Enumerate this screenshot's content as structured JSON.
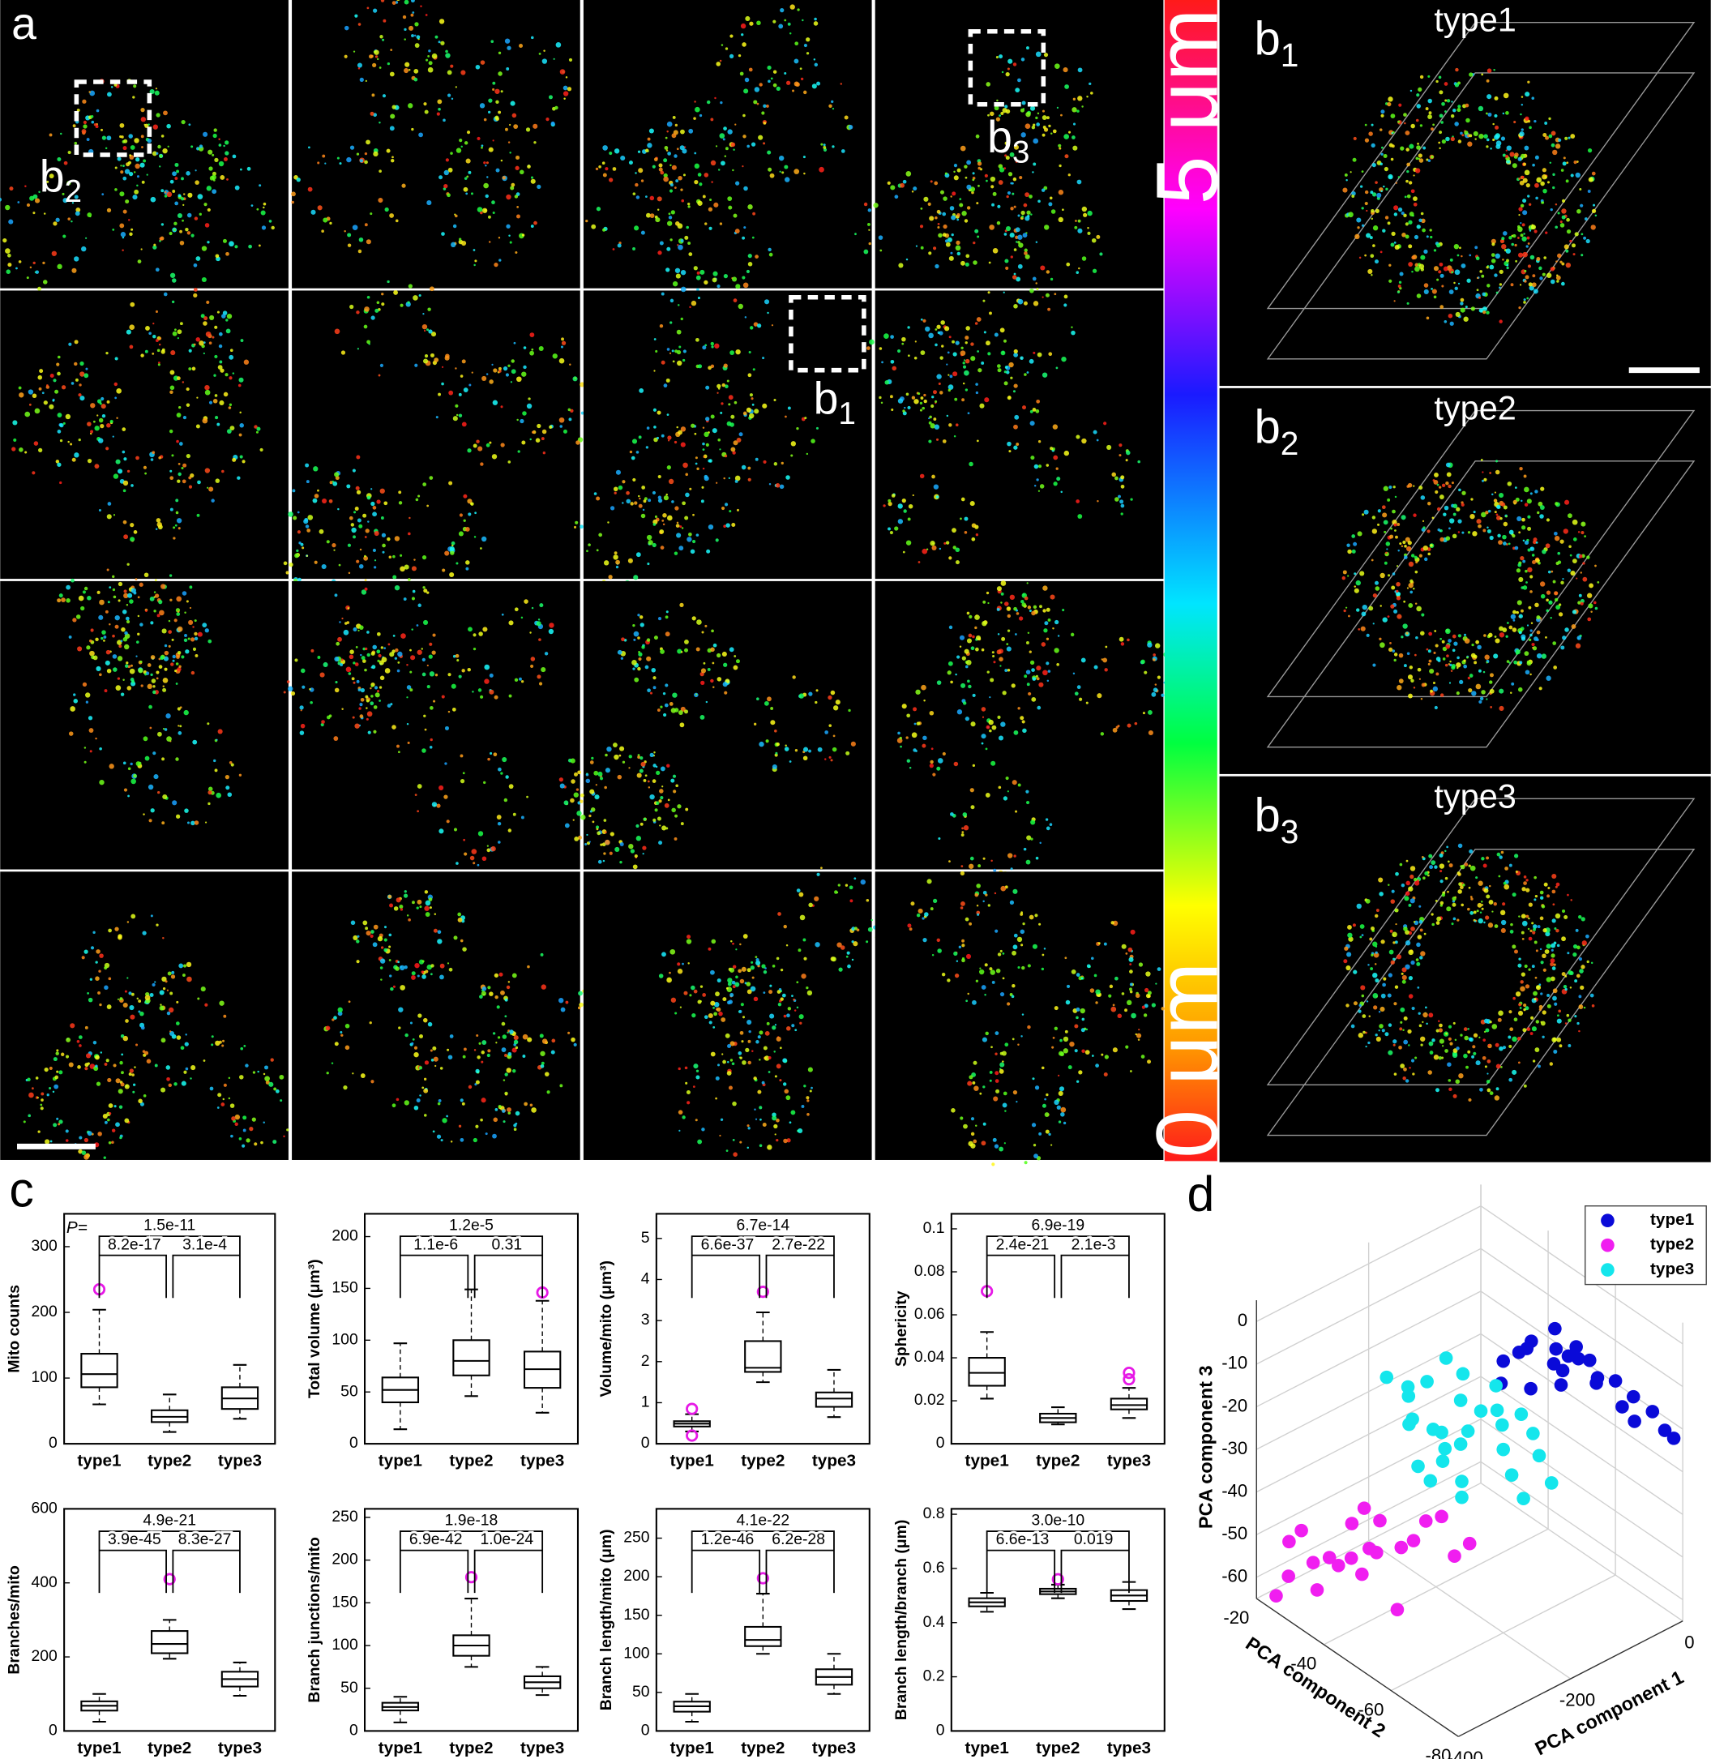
{
  "panel_labels": {
    "a": "a",
    "c": "c",
    "d": "d"
  },
  "panel_a": {
    "insets": [
      {
        "main": "b",
        "sub": "2"
      },
      {
        "main": "b",
        "sub": "3"
      },
      {
        "main": "b",
        "sub": "1"
      }
    ]
  },
  "colorbar": {
    "top_label": "5 μm",
    "bottom_label": "0 μm"
  },
  "panel_b": [
    {
      "main": "b",
      "sub": "1",
      "title": "type1"
    },
    {
      "main": "b",
      "sub": "2",
      "title": "type2"
    },
    {
      "main": "b",
      "sub": "3",
      "title": "type3"
    }
  ],
  "chart_data": [
    {
      "type": "box",
      "ylabel": "Mito counts",
      "categories": [
        "type1",
        "type2",
        "type3"
      ],
      "color": "#000000",
      "outlier_color": "#e619e6",
      "ylim": [
        0,
        350
      ],
      "yticks": [
        0,
        100,
        200,
        300
      ],
      "p_prefix": "P=",
      "pvalues": {
        "overall": "1.5e-11",
        "left": "8.2e-17",
        "right": "3.1e-4"
      },
      "boxes": [
        {
          "min": 60,
          "q1": 86,
          "median": 106,
          "q3": 137,
          "max": 204,
          "outliers": [
            235
          ]
        },
        {
          "min": 18,
          "q1": 33,
          "median": 41,
          "q3": 51,
          "max": 75,
          "outliers": []
        },
        {
          "min": 38,
          "q1": 53,
          "median": 69,
          "q3": 86,
          "max": 120,
          "outliers": []
        }
      ]
    },
    {
      "type": "box",
      "ylabel": "Total volume (μm³)",
      "categories": [
        "type1",
        "type2",
        "type3"
      ],
      "color": "#000000",
      "outlier_color": "#e619e6",
      "ylim": [
        0,
        222
      ],
      "yticks": [
        0,
        50,
        100,
        150,
        200
      ],
      "pvalues": {
        "overall": "1.2e-5",
        "left": "1.1e-6",
        "right": "0.31"
      },
      "boxes": [
        {
          "min": 14,
          "q1": 40,
          "median": 52,
          "q3": 64,
          "max": 97,
          "outliers": []
        },
        {
          "min": 46,
          "q1": 66,
          "median": 80,
          "q3": 100,
          "max": 149,
          "outliers": []
        },
        {
          "min": 30,
          "q1": 54,
          "median": 72,
          "q3": 89,
          "max": 138,
          "outliers": [
            146
          ]
        }
      ]
    },
    {
      "type": "box",
      "ylabel": "Volume/mito (μm³)",
      "categories": [
        "type1",
        "type2",
        "type3"
      ],
      "color": "#000000",
      "outlier_color": "#e619e6",
      "ylim": [
        0,
        5.6
      ],
      "yticks": [
        0,
        1,
        2,
        3,
        4,
        5
      ],
      "pvalues": {
        "overall": "6.7e-14",
        "left": "6.6e-37",
        "right": "2.7e-22"
      },
      "boxes": [
        {
          "min": 0.3,
          "q1": 0.42,
          "median": 0.49,
          "q3": 0.55,
          "max": 0.72,
          "outliers": [
            0.85,
            0.2
          ]
        },
        {
          "min": 1.5,
          "q1": 1.75,
          "median": 1.85,
          "q3": 2.5,
          "max": 3.2,
          "outliers": [
            3.7
          ]
        },
        {
          "min": 0.65,
          "q1": 0.9,
          "median": 1.1,
          "q3": 1.25,
          "max": 1.8,
          "outliers": []
        }
      ]
    },
    {
      "type": "box",
      "ylabel": "Sphericity",
      "categories": [
        "type1",
        "type2",
        "type3"
      ],
      "color": "#000000",
      "outlier_color": "#e619e6",
      "ylim": [
        0,
        0.107
      ],
      "yticks": [
        0,
        0.02,
        0.04,
        0.06,
        0.08,
        0.1
      ],
      "pvalues": {
        "overall": "6.9e-19",
        "left": "2.4e-21",
        "right": "2.1e-3"
      },
      "boxes": [
        {
          "min": 0.021,
          "q1": 0.027,
          "median": 0.033,
          "q3": 0.04,
          "max": 0.052,
          "outliers": [
            0.071
          ]
        },
        {
          "min": 0.009,
          "q1": 0.01,
          "median": 0.012,
          "q3": 0.014,
          "max": 0.017,
          "outliers": []
        },
        {
          "min": 0.012,
          "q1": 0.016,
          "median": 0.018,
          "q3": 0.021,
          "max": 0.026,
          "outliers": [
            0.03,
            0.033
          ]
        }
      ]
    },
    {
      "type": "box",
      "ylabel": "Branches/mito",
      "categories": [
        "type1",
        "type2",
        "type3"
      ],
      "color": "#000000",
      "outlier_color": "#e619e6",
      "ylim": [
        0,
        600
      ],
      "yticks": [
        0,
        200,
        400,
        600
      ],
      "pvalues": {
        "overall": "4.9e-21",
        "left": "3.9e-45",
        "right": "8.3e-27"
      },
      "boxes": [
        {
          "min": 25,
          "q1": 55,
          "median": 68,
          "q3": 80,
          "max": 100,
          "outliers": []
        },
        {
          "min": 195,
          "q1": 210,
          "median": 235,
          "q3": 270,
          "max": 300,
          "outliers": [
            410
          ]
        },
        {
          "min": 95,
          "q1": 120,
          "median": 140,
          "q3": 160,
          "max": 185,
          "outliers": []
        }
      ]
    },
    {
      "type": "box",
      "ylabel": "Branch junctions/mito",
      "categories": [
        "type1",
        "type2",
        "type3"
      ],
      "color": "#000000",
      "outlier_color": "#e619e6",
      "ylim": [
        0,
        260
      ],
      "yticks": [
        0,
        50,
        100,
        150,
        200,
        250
      ],
      "pvalues": {
        "overall": "1.9e-18",
        "left": "6.9e-42",
        "right": "1.0e-24"
      },
      "boxes": [
        {
          "min": 10,
          "q1": 24,
          "median": 28,
          "q3": 33,
          "max": 40,
          "outliers": []
        },
        {
          "min": 75,
          "q1": 88,
          "median": 100,
          "q3": 112,
          "max": 155,
          "outliers": [
            180
          ]
        },
        {
          "min": 42,
          "q1": 50,
          "median": 57,
          "q3": 64,
          "max": 75,
          "outliers": []
        }
      ]
    },
    {
      "type": "box",
      "ylabel": "Branch length/mito (μm)",
      "categories": [
        "type1",
        "type2",
        "type3"
      ],
      "color": "#000000",
      "outlier_color": "#e619e6",
      "ylim": [
        0,
        288
      ],
      "yticks": [
        0,
        50,
        100,
        150,
        200,
        250
      ],
      "pvalues": {
        "overall": "4.1e-22",
        "left": "1.2e-46",
        "right": "6.2e-28"
      },
      "boxes": [
        {
          "min": 12,
          "q1": 25,
          "median": 32,
          "q3": 38,
          "max": 48,
          "outliers": []
        },
        {
          "min": 100,
          "q1": 110,
          "median": 118,
          "q3": 135,
          "max": 178,
          "outliers": [
            198
          ]
        },
        {
          "min": 48,
          "q1": 60,
          "median": 70,
          "q3": 80,
          "max": 100,
          "outliers": []
        }
      ]
    },
    {
      "type": "box",
      "ylabel": "Branch length/branch (μm)",
      "categories": [
        "type1",
        "type2",
        "type3"
      ],
      "color": "#000000",
      "outlier_color": "#e619e6",
      "ylim": [
        0,
        0.82
      ],
      "yticks": [
        0,
        0.2,
        0.4,
        0.6,
        0.8
      ],
      "pvalues": {
        "overall": "3.0e-10",
        "left": "6.6e-13",
        "right": "0.019"
      },
      "boxes": [
        {
          "min": 0.44,
          "q1": 0.46,
          "median": 0.475,
          "q3": 0.49,
          "max": 0.51,
          "outliers": []
        },
        {
          "min": 0.49,
          "q1": 0.505,
          "median": 0.515,
          "q3": 0.525,
          "max": 0.54,
          "outliers": [
            0.56
          ]
        },
        {
          "min": 0.45,
          "q1": 0.48,
          "median": 0.5,
          "q3": 0.52,
          "max": 0.55,
          "outliers": []
        }
      ]
    },
    {
      "type": "scatter3d",
      "xlabel": "PCA component 1",
      "ylabel": "PCA component 2",
      "zlabel": "PCA component 3",
      "xlim": [
        -400,
        0
      ],
      "ylim": [
        -80,
        -20
      ],
      "zlim": [
        -65,
        5
      ],
      "xticks": [
        -400,
        -200,
        0
      ],
      "yticks": [
        -20,
        -40,
        -60,
        -80
      ],
      "zticks": [
        0,
        -10,
        -20,
        -30,
        -40,
        -50,
        -60
      ],
      "grid": true,
      "legend": "upper right",
      "series": [
        {
          "name": "type1",
          "color": "#0a0ad8",
          "x": [
            -150,
            -120,
            -100,
            -160,
            -130,
            -90,
            -60,
            -40,
            -20,
            -30,
            -110,
            -140,
            -80,
            -70,
            -50,
            -170,
            -180,
            -100,
            -10,
            -60,
            -130,
            -90,
            -115,
            -145
          ],
          "y": [
            -60,
            -62,
            -65,
            -58,
            -66,
            -64,
            -70,
            -72,
            -78,
            -76,
            -60,
            -57,
            -68,
            -66,
            -74,
            -55,
            -56,
            -69,
            -79,
            -72,
            -64,
            -61,
            -63,
            -59
          ],
          "z": [
            0,
            2,
            -2,
            -3,
            -5,
            -6,
            -10,
            -14,
            -20,
            -16,
            -8,
            -4,
            -9,
            -12,
            -18,
            -6,
            -10,
            -3,
            -22,
            -15,
            -1,
            -7,
            -11,
            -12
          ]
        },
        {
          "name": "type2",
          "color": "#f01ef0",
          "x": [
            -350,
            -380,
            -330,
            -360,
            -300,
            -320,
            -390,
            -340,
            -280,
            -370,
            -310,
            -260,
            -350,
            -395,
            -330,
            -290,
            -365,
            -345,
            -275,
            -385,
            -305,
            -325
          ],
          "y": [
            -40,
            -30,
            -45,
            -35,
            -50,
            -38,
            -28,
            -42,
            -55,
            -33,
            -48,
            -60,
            -36,
            -25,
            -44,
            -52,
            -31,
            -39,
            -58,
            -27,
            -46,
            -41
          ],
          "z": [
            -40,
            -45,
            -38,
            -50,
            -42,
            -55,
            -48,
            -36,
            -35,
            -58,
            -44,
            -40,
            -52,
            -62,
            -46,
            -37,
            -53,
            -49,
            -43,
            -57,
            -60,
            -47
          ]
        },
        {
          "name": "type3",
          "color": "#14e6ec",
          "x": [
            -250,
            -230,
            -280,
            -210,
            -260,
            -300,
            -190,
            -220,
            -240,
            -270,
            -200,
            -180,
            -160,
            -250,
            -290,
            -230,
            -210,
            -170,
            -260,
            -240,
            -220,
            -195,
            -280,
            -150,
            -165,
            -205,
            -235,
            -255,
            -185,
            -215
          ],
          "y": [
            -50,
            -48,
            -45,
            -55,
            -52,
            -42,
            -58,
            -46,
            -44,
            -50,
            -60,
            -62,
            -64,
            -56,
            -47,
            -53,
            -49,
            -61,
            -43,
            -54,
            -51,
            -57,
            -48,
            -66,
            -63,
            -59,
            -45,
            -41,
            -60,
            -52
          ],
          "z": [
            -20,
            -5,
            -10,
            -15,
            -25,
            -8,
            -18,
            -28,
            -12,
            -30,
            -22,
            -14,
            -24,
            -32,
            -17,
            -6,
            -26,
            -35,
            -20,
            -11,
            -33,
            -9,
            -27,
            -30,
            -19,
            -13,
            -23,
            -16,
            -29,
            -21
          ]
        }
      ]
    }
  ]
}
